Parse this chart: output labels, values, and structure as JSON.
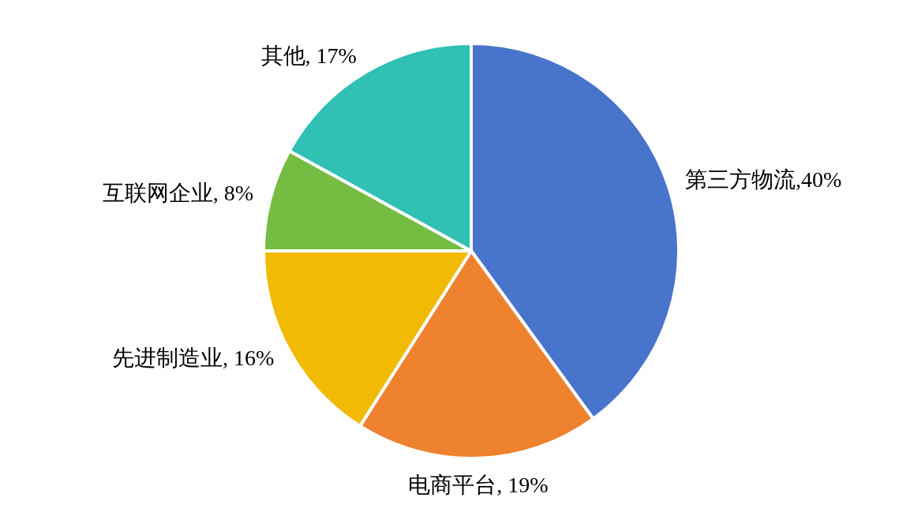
{
  "chart_data": {
    "type": "pie",
    "categories": [
      "第三方物流",
      "电商平台",
      "先进制造业",
      "互联网企业",
      "其他"
    ],
    "values": [
      40,
      19,
      16,
      8,
      17
    ],
    "colors": [
      "#4874cb",
      "#ee822f",
      "#f2ba02",
      "#75bd42",
      "#30c0b4"
    ],
    "value_labels": [
      ",40%",
      ", 19%",
      ", 16%",
      ", 8%",
      ", 17%"
    ],
    "legend": false
  }
}
